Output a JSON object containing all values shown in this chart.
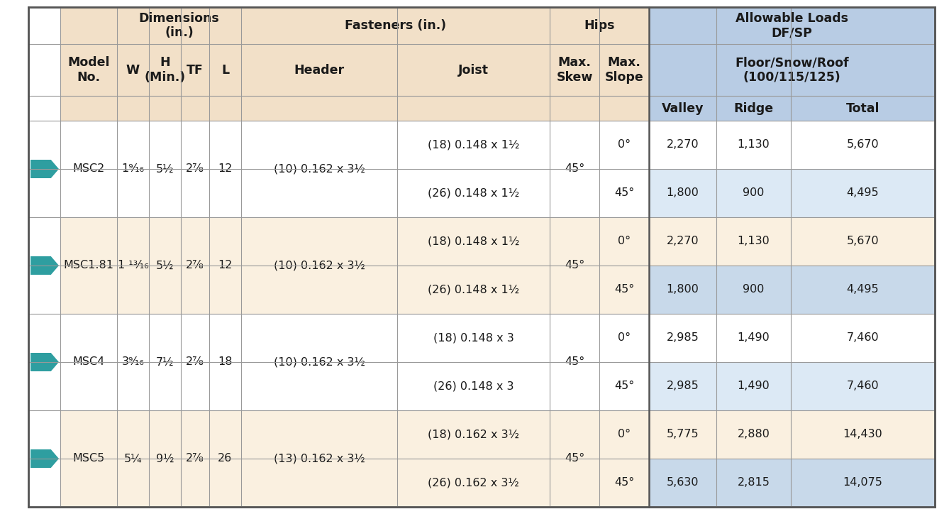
{
  "bg_color": "#FFFFFF",
  "header_bg": "#F2E0C8",
  "blue_header_bg": "#B8CCE4",
  "blue_cell_bg": "#DCE9F5",
  "white_cell_bg": "#FFFFFF",
  "tan_cell_bg": "#FAF0E0",
  "arrow_color": "#2E9EA0",
  "border_color": "#999999",
  "thick_border": "#555555",
  "rows": [
    {
      "model": "MSC2",
      "W": "1⁹⁄₁₆",
      "H": "5½",
      "TF": "2⅞",
      "L": "12",
      "header": "(10) 0.162 x 3½",
      "joist_row1": "(18) 0.148 x 1½",
      "joist_row2": "(26) 0.148 x 1½",
      "max_skew": "45°",
      "slope_row1": "0°",
      "slope_row2": "45°",
      "valley_row1": "2,270",
      "valley_row2": "1,800",
      "ridge_row1": "1,130",
      "ridge_row2": "900",
      "total_row1": "5,670",
      "total_row2": "4,495",
      "bg": "white"
    },
    {
      "model": "MSC1.81",
      "W": "1 ¹³⁄₁₆",
      "H": "5½",
      "TF": "2⅞",
      "L": "12",
      "header": "(10) 0.162 x 3½",
      "joist_row1": "(18) 0.148 x 1½",
      "joist_row2": "(26) 0.148 x 1½",
      "max_skew": "45°",
      "slope_row1": "0°",
      "slope_row2": "45°",
      "valley_row1": "2,270",
      "valley_row2": "1,800",
      "ridge_row1": "1,130",
      "ridge_row2": "900",
      "total_row1": "5,670",
      "total_row2": "4,495",
      "bg": "tan"
    },
    {
      "model": "MSC4",
      "W": "3⁹⁄₁₆",
      "H": "7½",
      "TF": "2⅞",
      "L": "18",
      "header": "(10) 0.162 x 3½",
      "joist_row1": "(18) 0.148 x 3",
      "joist_row2": "(26) 0.148 x 3",
      "max_skew": "45°",
      "slope_row1": "0°",
      "slope_row2": "45°",
      "valley_row1": "2,985",
      "valley_row2": "2,985",
      "ridge_row1": "1,490",
      "ridge_row2": "1,490",
      "total_row1": "7,460",
      "total_row2": "7,460",
      "bg": "white"
    },
    {
      "model": "MSC5",
      "W": "5¼",
      "H": "9½",
      "TF": "2⅞",
      "L": "26",
      "header": "(13) 0.162 x 3½",
      "joist_row1": "(18) 0.162 x 3½",
      "joist_row2": "(26) 0.162 x 3½",
      "max_skew": "45°",
      "slope_row1": "0°",
      "slope_row2": "45°",
      "valley_row1": "5,775",
      "valley_row2": "5,630",
      "ridge_row1": "2,880",
      "ridge_row2": "2,815",
      "total_row1": "14,430",
      "total_row2": "14,075",
      "bg": "tan"
    }
  ]
}
